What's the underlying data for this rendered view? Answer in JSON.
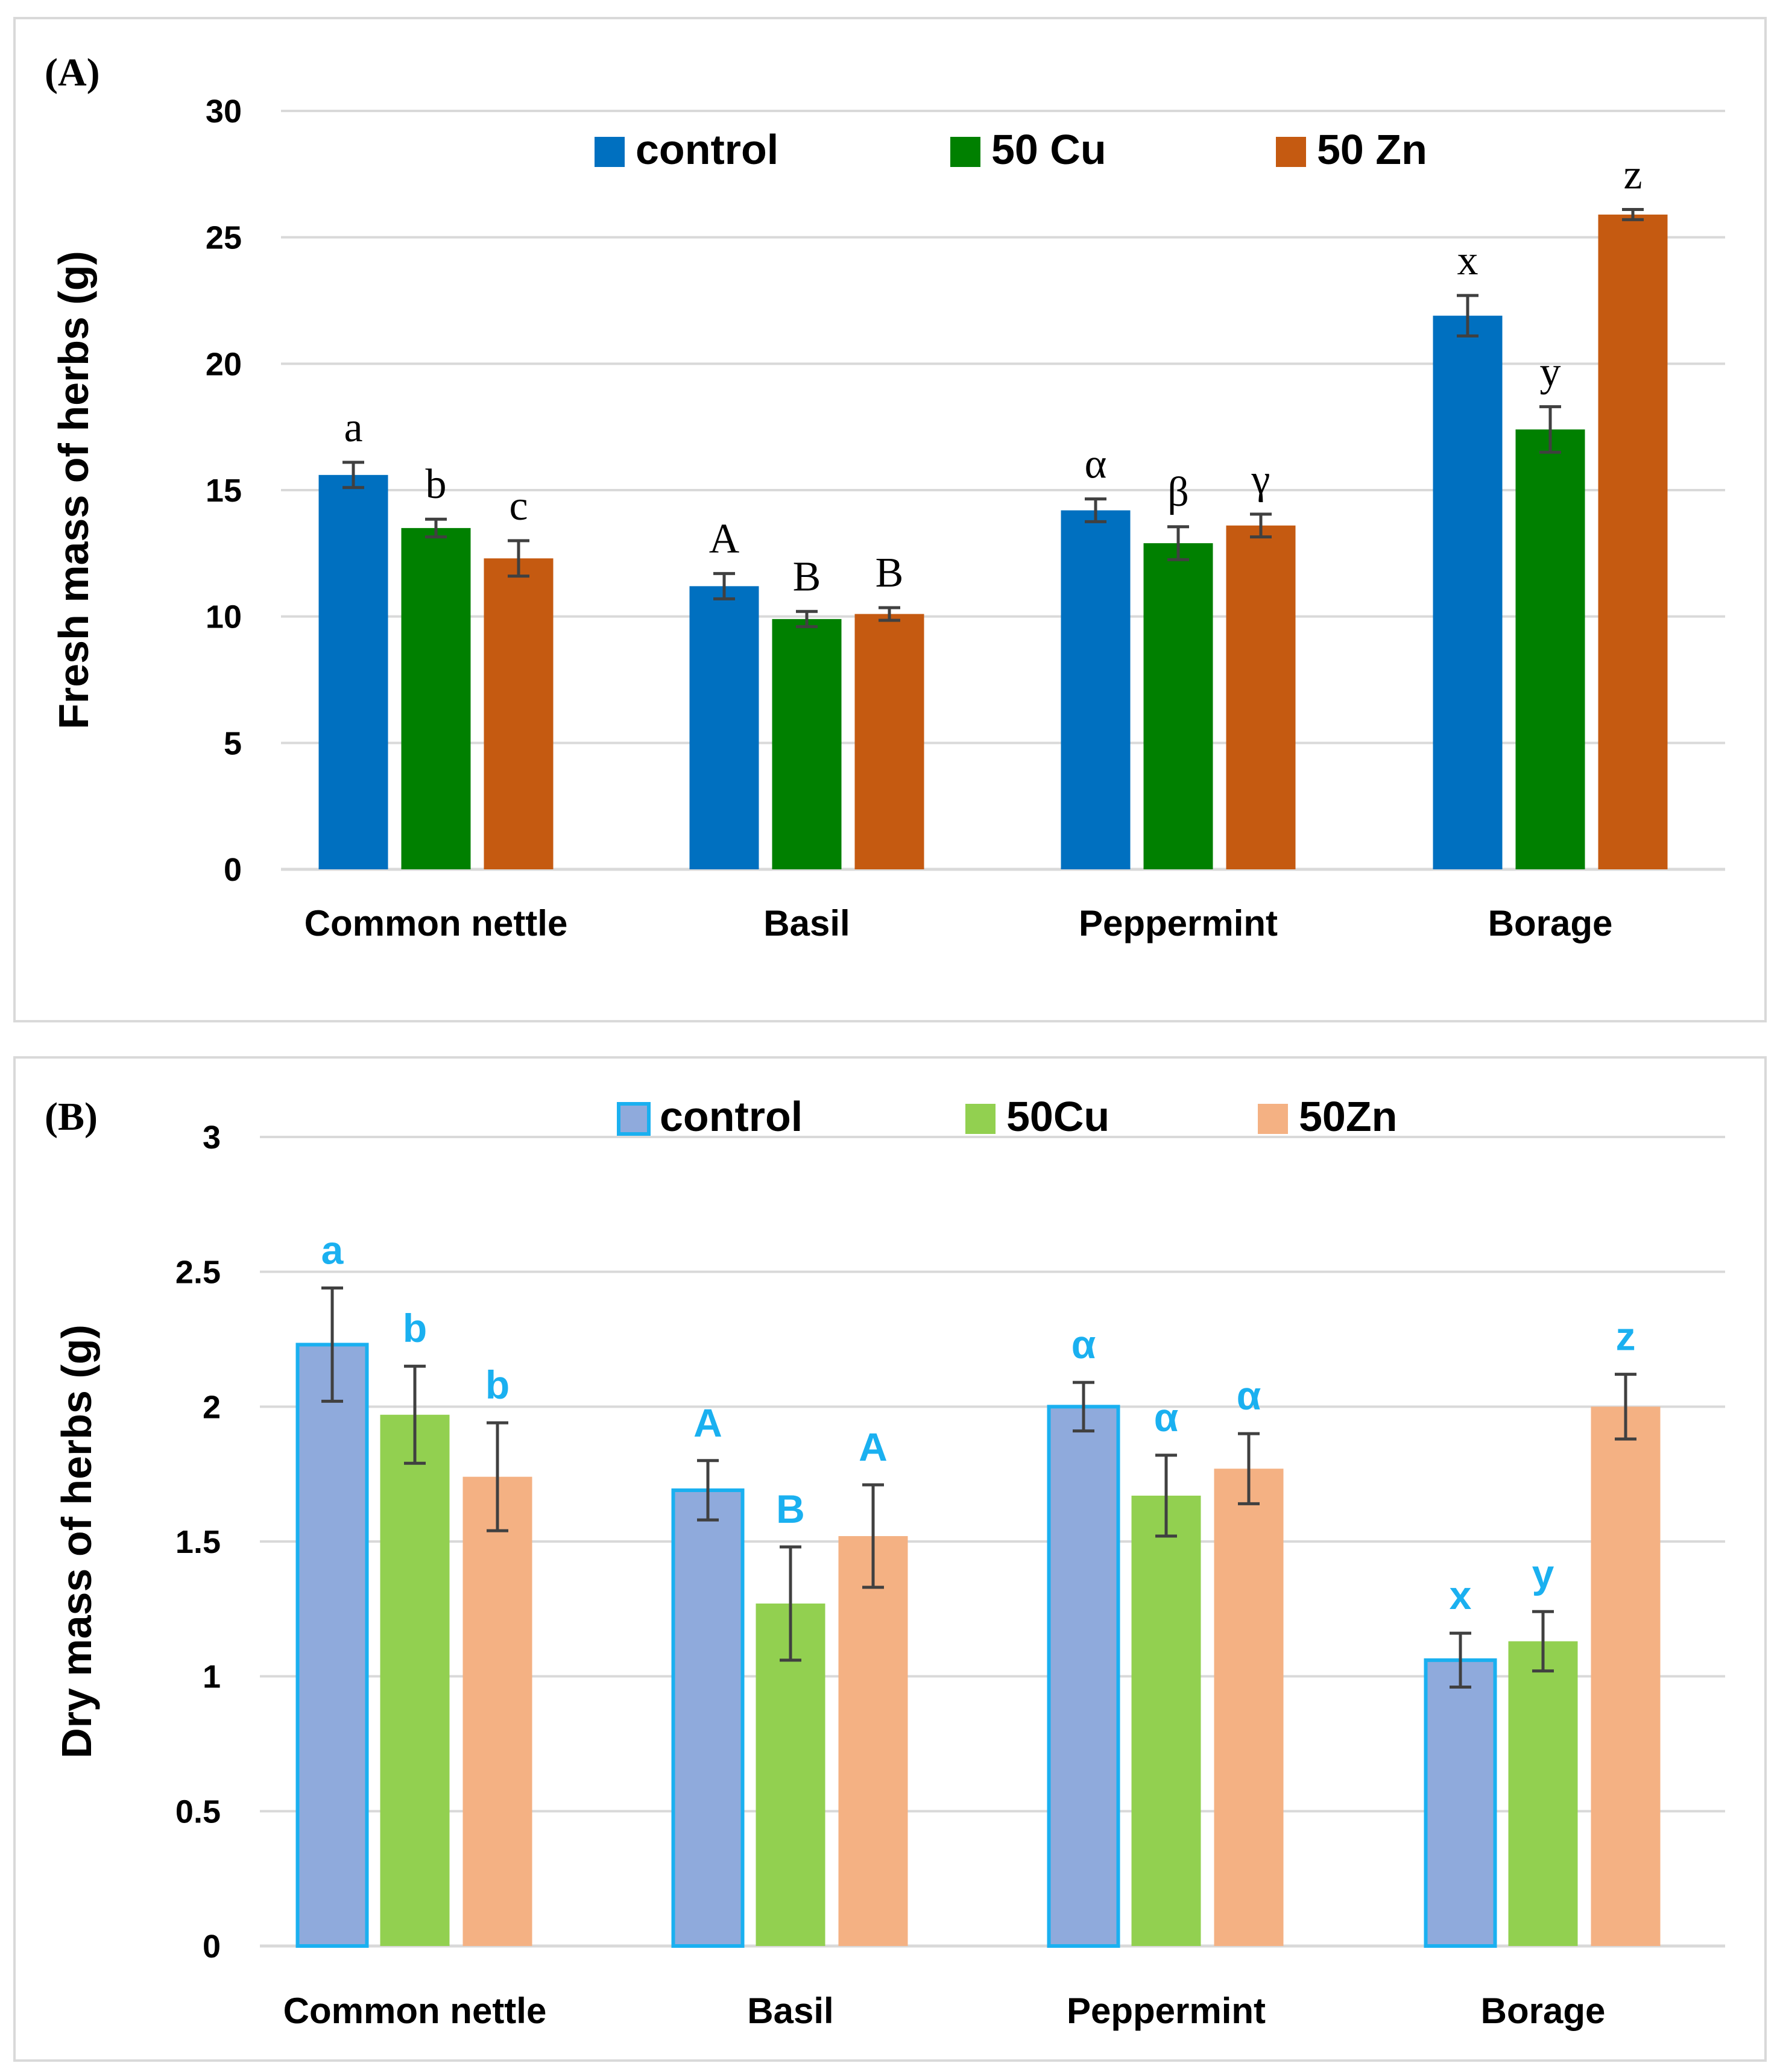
{
  "chart_data": [
    {
      "panel_label": "(A)",
      "type": "bar",
      "ylabel": "Fresh mass of herbs (g)",
      "xlabel": "",
      "ylim": [
        0,
        30
      ],
      "yticks": [
        "0",
        "5",
        "10",
        "15",
        "20",
        "25",
        "30"
      ],
      "grid": true,
      "legend_position": "top",
      "categories": [
        "Common nettle",
        "Basil",
        "Peppermint",
        "Borage"
      ],
      "series": [
        {
          "name": "control",
          "color": "#0070c0",
          "values": [
            15.6,
            11.2,
            14.2,
            21.9
          ],
          "errors": [
            0.5,
            0.5,
            0.45,
            0.8
          ],
          "letters": [
            "a",
            "A",
            "α",
            "x"
          ]
        },
        {
          "name": "50 Cu",
          "color": "#008000",
          "values": [
            13.5,
            9.9,
            12.9,
            17.4
          ],
          "errors": [
            0.35,
            0.3,
            0.65,
            0.9
          ],
          "letters": [
            "b",
            "B",
            "β",
            "y"
          ]
        },
        {
          "name": "50 Zn",
          "color": "#c55a11",
          "values": [
            12.3,
            10.1,
            13.6,
            25.9
          ],
          "errors": [
            0.7,
            0.25,
            0.45,
            0.2
          ],
          "letters": [
            "c",
            "B",
            "γ",
            "z"
          ]
        }
      ]
    },
    {
      "panel_label": "(B)",
      "type": "bar",
      "ylabel": "Dry mass of herbs (g)",
      "xlabel": "",
      "ylim": [
        0,
        3
      ],
      "yticks": [
        "0",
        "0.5",
        "1",
        "1.5",
        "2",
        "2.5",
        "3"
      ],
      "grid": true,
      "legend_position": "top",
      "letter_color": "#1ab0f0",
      "categories": [
        "Common nettle",
        "Basil",
        "Peppermint",
        "Borage"
      ],
      "series": [
        {
          "name": "control",
          "color": "#8faadc",
          "stroke": "#1ab0f0",
          "values": [
            2.23,
            1.69,
            2.0,
            1.06
          ],
          "errors": [
            0.21,
            0.11,
            0.09,
            0.1
          ],
          "letters": [
            "a",
            "A",
            "α",
            "x"
          ]
        },
        {
          "name": "50Cu",
          "color": "#92d050",
          "stroke": "",
          "values": [
            1.97,
            1.27,
            1.67,
            1.13
          ],
          "errors": [
            0.18,
            0.21,
            0.15,
            0.11
          ],
          "letters": [
            "b",
            "B",
            "α",
            "y"
          ]
        },
        {
          "name": "50Zn",
          "color": "#f4b183",
          "stroke": "",
          "values": [
            1.74,
            1.52,
            1.77,
            2.0
          ],
          "errors": [
            0.2,
            0.19,
            0.13,
            0.12
          ],
          "letters": [
            "b",
            "A",
            "α",
            "z"
          ]
        }
      ]
    }
  ]
}
